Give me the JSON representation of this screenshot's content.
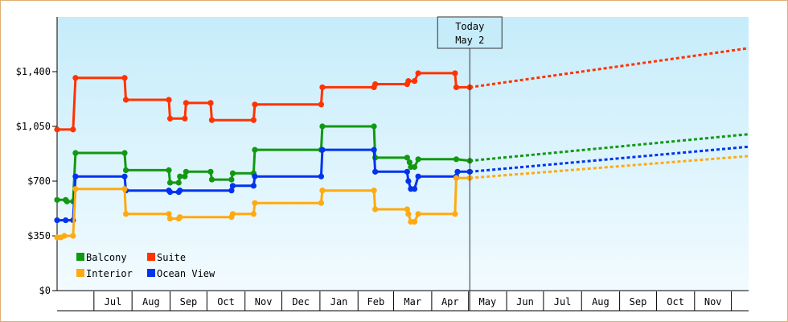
{
  "chart_data": {
    "type": "line",
    "title": "",
    "xlabel": "",
    "ylabel": "",
    "ylim": [
      0,
      1750
    ],
    "y_ticks": [
      "$0",
      "$350",
      "$700",
      "$1,050",
      "$1,400"
    ],
    "y_tick_values": [
      0,
      350,
      700,
      1050,
      1400
    ],
    "x_ticks": [
      "Jul",
      "Aug",
      "Sep",
      "Oct",
      "Nov",
      "Dec",
      "Jan",
      "Feb",
      "Mar",
      "Apr",
      "May",
      "Jun",
      "Jul",
      "Aug",
      "Sep",
      "Oct",
      "Nov"
    ],
    "x_range": [
      "2023-06-01",
      "2024-12-15"
    ],
    "grid": false,
    "background": "light blue gradient",
    "legend_position": "bottom-left",
    "today_marker": {
      "line1": "Today",
      "line2": "May 2",
      "date": "2024-05-02"
    },
    "series": [
      {
        "name": "Suite",
        "color": "#ff3300",
        "points": [
          [
            "2023-06-01",
            1030
          ],
          [
            "2023-06-14",
            1030
          ],
          [
            "2023-06-16",
            1360
          ],
          [
            "2023-07-26",
            1360
          ],
          [
            "2023-07-27",
            1220
          ],
          [
            "2023-08-31",
            1220
          ],
          [
            "2023-09-01",
            1100
          ],
          [
            "2023-09-13",
            1100
          ],
          [
            "2023-09-14",
            1200
          ],
          [
            "2023-10-04",
            1200
          ],
          [
            "2023-10-05",
            1090
          ],
          [
            "2023-11-08",
            1090
          ],
          [
            "2023-11-09",
            1190
          ],
          [
            "2024-01-02",
            1190
          ],
          [
            "2024-01-03",
            1300
          ],
          [
            "2024-02-14",
            1300
          ],
          [
            "2024-02-15",
            1320
          ],
          [
            "2024-03-12",
            1320
          ],
          [
            "2024-03-13",
            1340
          ],
          [
            "2024-03-18",
            1340
          ],
          [
            "2024-03-21",
            1390
          ],
          [
            "2024-04-20",
            1390
          ],
          [
            "2024-04-21",
            1300
          ],
          [
            "2024-05-02",
            1300
          ]
        ],
        "forecast": [
          [
            "2024-05-02",
            1300
          ],
          [
            "2024-12-15",
            1550
          ]
        ]
      },
      {
        "name": "Balcony",
        "color": "#119911",
        "points": [
          [
            "2023-06-01",
            580
          ],
          [
            "2023-06-08",
            580
          ],
          [
            "2023-06-09",
            570
          ],
          [
            "2023-06-14",
            570
          ],
          [
            "2023-06-16",
            880
          ],
          [
            "2023-07-26",
            880
          ],
          [
            "2023-07-27",
            770
          ],
          [
            "2023-08-31",
            770
          ],
          [
            "2023-09-01",
            690
          ],
          [
            "2023-09-08",
            690
          ],
          [
            "2023-09-09",
            730
          ],
          [
            "2023-09-13",
            730
          ],
          [
            "2023-09-14",
            760
          ],
          [
            "2023-10-04",
            760
          ],
          [
            "2023-10-05",
            710
          ],
          [
            "2023-10-21",
            710
          ],
          [
            "2023-10-22",
            750
          ],
          [
            "2023-11-08",
            750
          ],
          [
            "2023-11-09",
            900
          ],
          [
            "2024-01-02",
            900
          ],
          [
            "2024-01-03",
            1050
          ],
          [
            "2024-02-14",
            1050
          ],
          [
            "2024-02-15",
            850
          ],
          [
            "2024-03-12",
            850
          ],
          [
            "2024-03-14",
            820
          ],
          [
            "2024-03-15",
            790
          ],
          [
            "2024-03-18",
            790
          ],
          [
            "2024-03-21",
            840
          ],
          [
            "2024-04-21",
            840
          ],
          [
            "2024-05-02",
            830
          ]
        ],
        "forecast": [
          [
            "2024-05-02",
            830
          ],
          [
            "2024-12-15",
            1000
          ]
        ]
      },
      {
        "name": "Ocean View",
        "color": "#0033ee",
        "points": [
          [
            "2023-06-01",
            450
          ],
          [
            "2023-06-08",
            450
          ],
          [
            "2023-06-14",
            450
          ],
          [
            "2023-06-16",
            730
          ],
          [
            "2023-07-26",
            730
          ],
          [
            "2023-07-27",
            640
          ],
          [
            "2023-08-31",
            640
          ],
          [
            "2023-09-01",
            630
          ],
          [
            "2023-09-08",
            630
          ],
          [
            "2023-09-09",
            640
          ],
          [
            "2023-10-21",
            640
          ],
          [
            "2023-10-22",
            670
          ],
          [
            "2023-11-08",
            670
          ],
          [
            "2023-11-09",
            730
          ],
          [
            "2024-01-02",
            730
          ],
          [
            "2024-01-03",
            900
          ],
          [
            "2024-02-14",
            900
          ],
          [
            "2024-02-15",
            760
          ],
          [
            "2024-03-12",
            760
          ],
          [
            "2024-03-13",
            700
          ],
          [
            "2024-03-15",
            650
          ],
          [
            "2024-03-18",
            650
          ],
          [
            "2024-03-21",
            730
          ],
          [
            "2024-04-21",
            730
          ],
          [
            "2024-04-22",
            760
          ],
          [
            "2024-05-02",
            760
          ]
        ],
        "forecast": [
          [
            "2024-05-02",
            760
          ],
          [
            "2024-12-15",
            920
          ]
        ]
      },
      {
        "name": "Interior",
        "color": "#ffaa11",
        "points": [
          [
            "2023-06-01",
            340
          ],
          [
            "2023-06-04",
            340
          ],
          [
            "2023-06-07",
            350
          ],
          [
            "2023-06-14",
            350
          ],
          [
            "2023-06-16",
            650
          ],
          [
            "2023-07-26",
            650
          ],
          [
            "2023-07-27",
            490
          ],
          [
            "2023-08-31",
            490
          ],
          [
            "2023-09-01",
            460
          ],
          [
            "2023-09-08",
            460
          ],
          [
            "2023-09-09",
            470
          ],
          [
            "2023-10-21",
            470
          ],
          [
            "2023-10-22",
            490
          ],
          [
            "2023-11-08",
            490
          ],
          [
            "2023-11-09",
            560
          ],
          [
            "2024-01-02",
            560
          ],
          [
            "2024-01-03",
            640
          ],
          [
            "2024-02-14",
            640
          ],
          [
            "2024-02-15",
            520
          ],
          [
            "2024-03-12",
            520
          ],
          [
            "2024-03-13",
            490
          ],
          [
            "2024-03-15",
            440
          ],
          [
            "2024-03-18",
            440
          ],
          [
            "2024-03-21",
            490
          ],
          [
            "2024-04-20",
            490
          ],
          [
            "2024-04-21",
            720
          ],
          [
            "2024-05-02",
            720
          ]
        ],
        "forecast": [
          [
            "2024-05-02",
            720
          ],
          [
            "2024-12-15",
            860
          ]
        ]
      }
    ],
    "legend": [
      {
        "label": "Balcony",
        "color": "#119911"
      },
      {
        "label": "Suite",
        "color": "#ff3300"
      },
      {
        "label": "Interior",
        "color": "#ffaa11"
      },
      {
        "label": "Ocean View",
        "color": "#0033ee"
      }
    ]
  }
}
